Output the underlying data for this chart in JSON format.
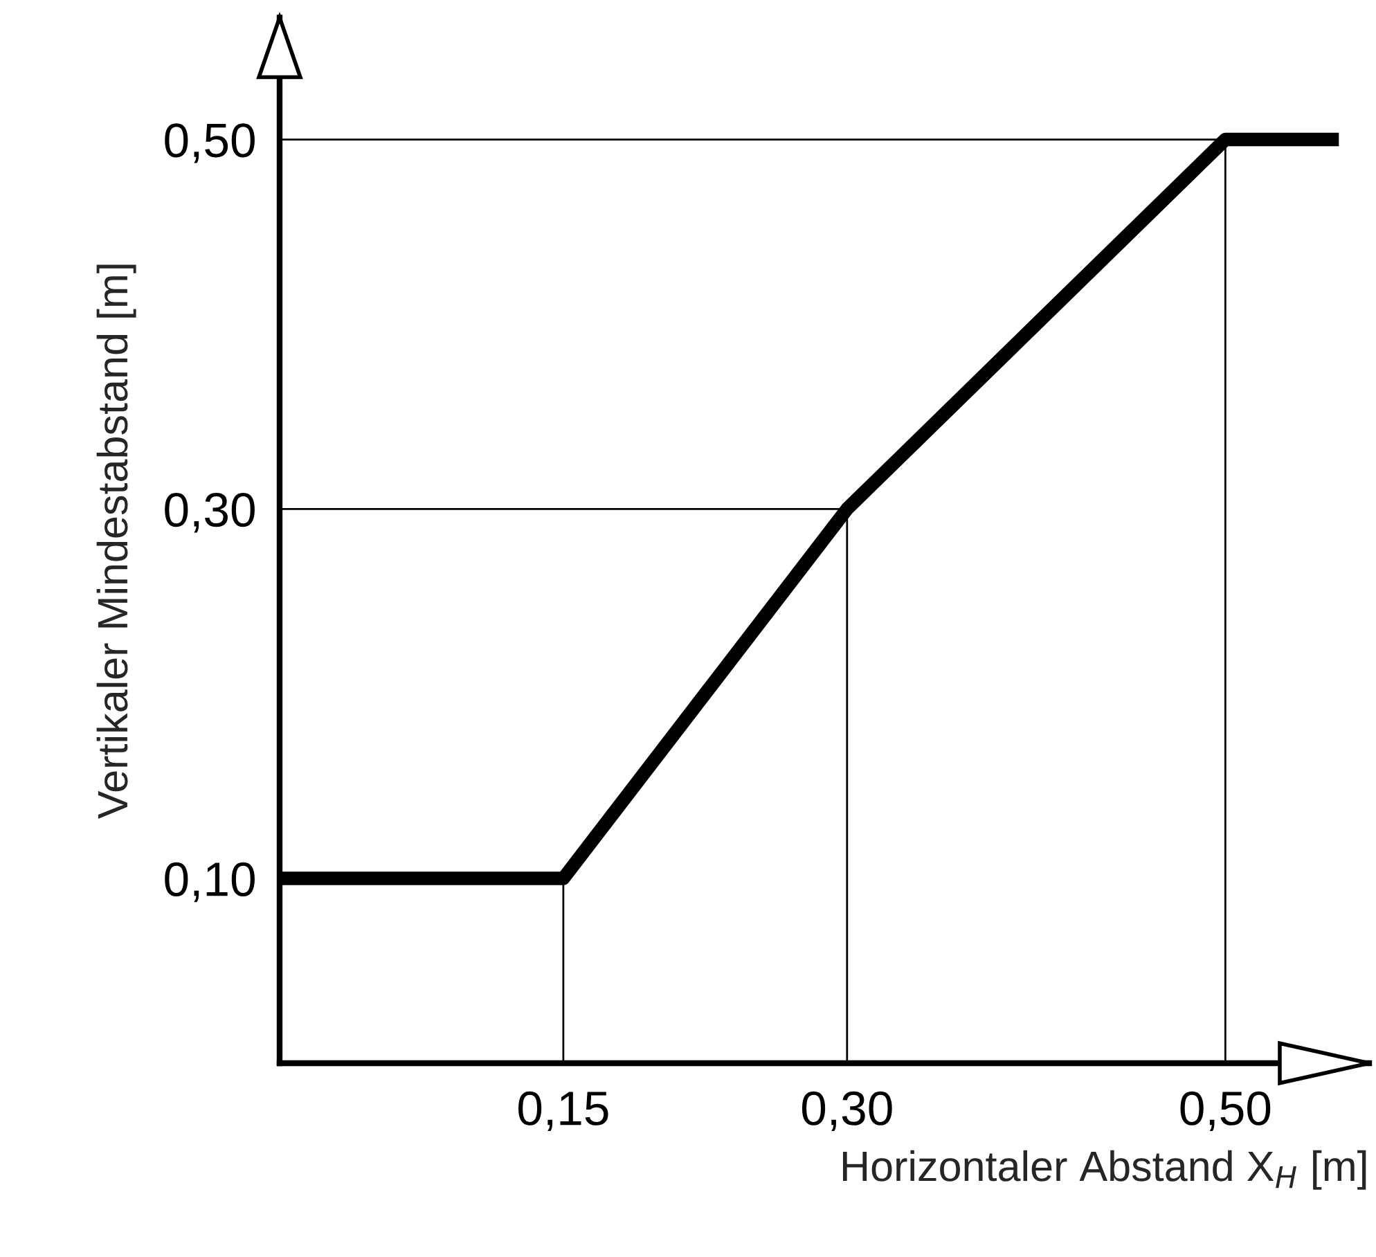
{
  "chart_data": {
    "type": "line",
    "xlabel": "Horizontaler Abstand X$_{H}$ [m]",
    "ylabel": "Vertikaler Mindestabstand [m]",
    "xlim": [
      0,
      0.576
    ],
    "ylim": [
      0,
      0.566
    ],
    "xticks": [
      {
        "value": 0.15,
        "label": "0,15"
      },
      {
        "value": 0.3,
        "label": "0,30"
      },
      {
        "value": 0.5,
        "label": "0,50"
      }
    ],
    "yticks": [
      {
        "value": 0.1,
        "label": "0,10"
      },
      {
        "value": 0.3,
        "label": "0,30"
      },
      {
        "value": 0.5,
        "label": "0,50"
      }
    ],
    "series": [
      {
        "color": "#000000",
        "x": [
          0,
          0.15,
          0.3,
          0.5,
          0.56
        ],
        "values": [
          0.1,
          0.1,
          0.3,
          0.5,
          0.5
        ]
      },
      {
        "color": "#000000",
        "x": [
          0.15,
          0.15
        ],
        "values": [
          0,
          0.1
        ]
      },
      {
        "color": "#000000",
        "x": [
          0.3,
          0.3
        ],
        "values": [
          0,
          0.3
        ]
      },
      {
        "color": "#000000",
        "x": [
          0.5,
          0.5
        ],
        "values": [
          0,
          0.5
        ]
      },
      {
        "color": "#000000",
        "x": [
          0,
          0.3
        ],
        "values": [
          0.3,
          0.3
        ]
      },
      {
        "color": "#000000",
        "x": [
          0,
          0.5
        ],
        "values": [
          0.5,
          0.5
        ]
      }
    ],
    "grid": false,
    "legend": false
  }
}
